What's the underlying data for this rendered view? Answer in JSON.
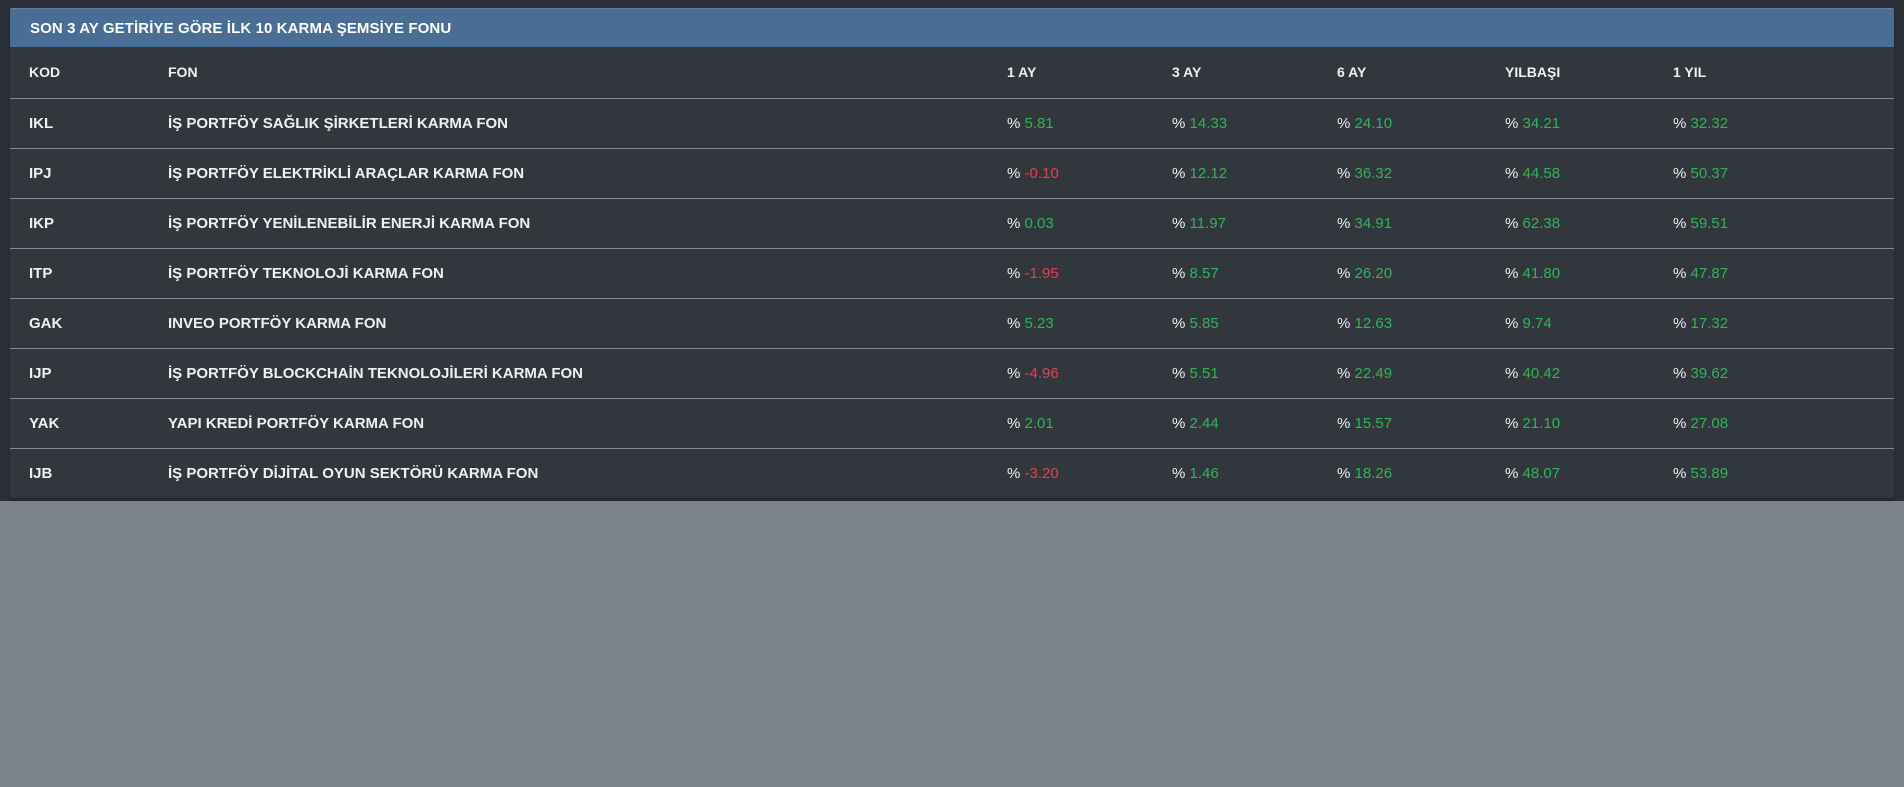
{
  "page": {
    "background": "#7d838b",
    "region_background": "#2b3038"
  },
  "panel": {
    "title": "SON 3 AY GETİRİYE GÖRE İLK 10 KARMA ŞEMSİYE FONU",
    "header_bg": "#4a6d96",
    "table_bg": "#32373e"
  },
  "table": {
    "columns": [
      "KOD",
      "FON",
      "1 AY",
      "3 AY",
      "6 AY",
      "YILBAŞI",
      "1 YIL"
    ],
    "percent_symbol": "%",
    "rows": [
      {
        "kod": "IKL",
        "fon": "İŞ PORTFÖY SAĞLIK ŞİRKETLERİ KARMA FON",
        "values": [
          "5.81",
          "14.33",
          "24.10",
          "34.21",
          "32.32"
        ]
      },
      {
        "kod": "IPJ",
        "fon": "İŞ PORTFÖY ELEKTRİKLİ ARAÇLAR KARMA FON",
        "values": [
          "-0.10",
          "12.12",
          "36.32",
          "44.58",
          "50.37"
        ]
      },
      {
        "kod": "IKP",
        "fon": "İŞ PORTFÖY YENİLENEBİLİR ENERJİ KARMA FON",
        "values": [
          "0.03",
          "11.97",
          "34.91",
          "62.38",
          "59.51"
        ]
      },
      {
        "kod": "ITP",
        "fon": "İŞ PORTFÖY TEKNOLOJİ KARMA FON",
        "values": [
          "-1.95",
          "8.57",
          "26.20",
          "41.80",
          "47.87"
        ]
      },
      {
        "kod": "GAK",
        "fon": "INVEO PORTFÖY KARMA FON",
        "values": [
          "5.23",
          "5.85",
          "12.63",
          "9.74",
          "17.32"
        ]
      },
      {
        "kod": "IJP",
        "fon": "İŞ PORTFÖY BLOCKCHAİN TEKNOLOJİLERİ KARMA FON",
        "values": [
          "-4.96",
          "5.51",
          "22.49",
          "40.42",
          "39.62"
        ]
      },
      {
        "kod": "YAK",
        "fon": "YAPI KREDİ PORTFÖY KARMA FON",
        "values": [
          "2.01",
          "2.44",
          "15.57",
          "21.10",
          "27.08"
        ]
      },
      {
        "kod": "IJB",
        "fon": "İŞ PORTFÖY DİJİTAL OYUN SEKTÖRÜ KARMA FON",
        "values": [
          "-3.20",
          "1.46",
          "18.26",
          "48.07",
          "53.89"
        ]
      }
    ],
    "colors": {
      "positive": "#31b457",
      "negative": "#e9404a",
      "text": "#eef0f2",
      "separator": "#878b91"
    }
  }
}
